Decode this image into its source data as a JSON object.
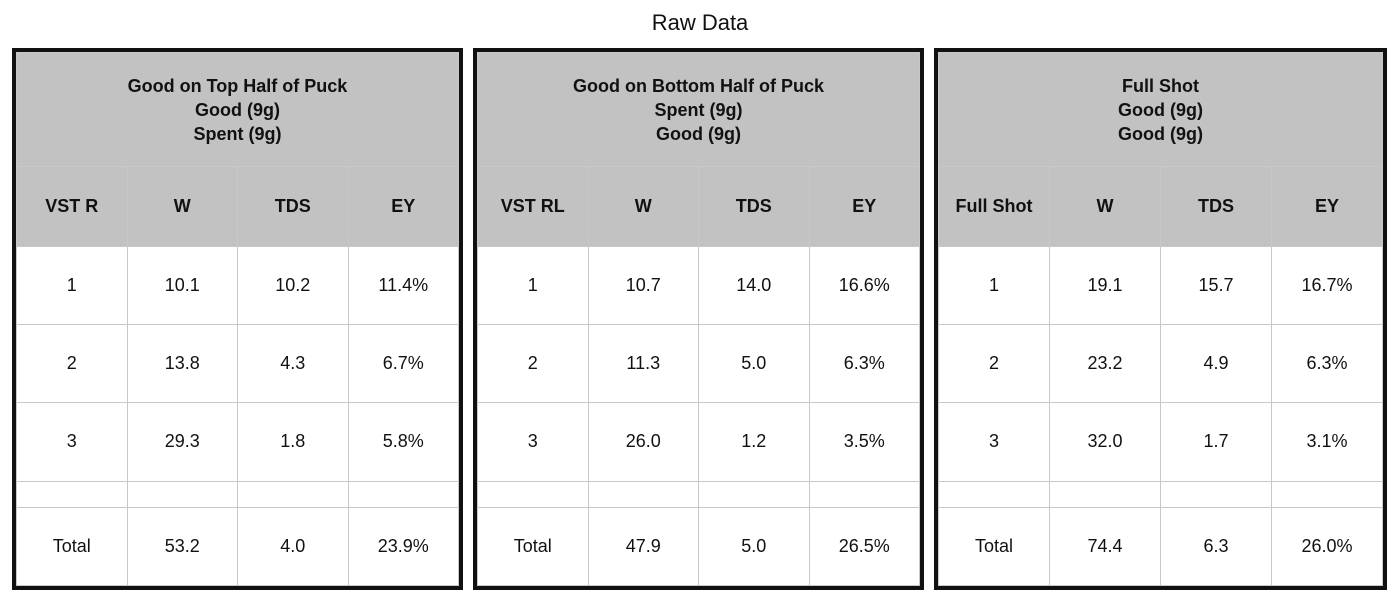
{
  "page_title": "Raw Data",
  "panels": [
    {
      "title": [
        "Good on Top Half of Puck",
        "Good (9g)",
        "Spent (9g)"
      ],
      "headers": [
        "VST R",
        "W",
        "TDS",
        "EY"
      ],
      "rows": [
        [
          "1",
          "10.1",
          "10.2",
          "11.4%"
        ],
        [
          "2",
          "13.8",
          "4.3",
          "6.7%"
        ],
        [
          "3",
          "29.3",
          "1.8",
          "5.8%"
        ]
      ],
      "total": [
        "Total",
        "53.2",
        "4.0",
        "23.9%"
      ]
    },
    {
      "title": [
        "Good on Bottom Half of Puck",
        "Spent (9g)",
        "Good (9g)"
      ],
      "headers": [
        "VST RL",
        "W",
        "TDS",
        "EY"
      ],
      "rows": [
        [
          "1",
          "10.7",
          "14.0",
          "16.6%"
        ],
        [
          "2",
          "11.3",
          "5.0",
          "6.3%"
        ],
        [
          "3",
          "26.0",
          "1.2",
          "3.5%"
        ]
      ],
      "total": [
        "Total",
        "47.9",
        "5.0",
        "26.5%"
      ]
    },
    {
      "title": [
        "Full Shot",
        "Good (9g)",
        "Good (9g)"
      ],
      "headers": [
        "Full Shot",
        "W",
        "TDS",
        "EY"
      ],
      "rows": [
        [
          "1",
          "19.1",
          "15.7",
          "16.7%"
        ],
        [
          "2",
          "23.2",
          "4.9",
          "6.3%"
        ],
        [
          "3",
          "32.0",
          "1.7",
          "3.1%"
        ]
      ],
      "total": [
        "Total",
        "74.4",
        "6.3",
        "26.0%"
      ]
    }
  ],
  "colors": {
    "header_bg": "#c2c2c2",
    "border": "#111111",
    "grid": "#c8c8c8"
  }
}
